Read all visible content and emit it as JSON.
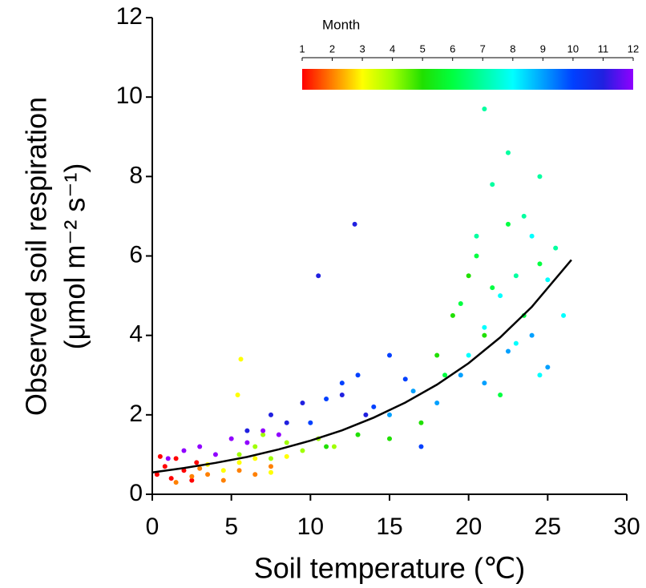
{
  "chart_data": {
    "type": "scatter",
    "xlabel": "Soil temperature (℃)",
    "ylabel": [
      "Observed soil respiration",
      "(μmol m⁻² s⁻¹)"
    ],
    "xlim": [
      0,
      30
    ],
    "xticks": [
      0,
      5,
      10,
      15,
      20,
      25,
      30
    ],
    "ylim": [
      0,
      12
    ],
    "yticks": [
      0,
      2,
      4,
      6,
      8,
      10,
      12
    ],
    "colorbar": {
      "title": "Month",
      "ticks": [
        1,
        2,
        3,
        4,
        5,
        6,
        7,
        8,
        9,
        10,
        11,
        12
      ],
      "colors": [
        "#ff0000",
        "#ff8000",
        "#ffff00",
        "#a0ff00",
        "#20e000",
        "#00ff40",
        "#00ffa0",
        "#00ffff",
        "#00a0ff",
        "#0040ff",
        "#2020e0",
        "#9000ff"
      ]
    },
    "points": {
      "x": [
        0.3,
        0.8,
        1.2,
        1.5,
        2.0,
        2.5,
        0.5,
        2.8,
        1.5,
        2.5,
        3.5,
        4.5,
        5.5,
        6.5,
        7.5,
        3.0,
        3.5,
        4.5,
        5.5,
        6.5,
        7.5,
        8.5,
        5.6,
        5.4,
        5.5,
        6.5,
        7.5,
        8.5,
        9.5,
        10.5,
        11.5,
        7.0,
        11,
        13,
        15,
        17,
        18,
        19,
        20,
        21,
        18.5,
        19.5,
        20.5,
        21.5,
        22.5,
        23.5,
        24.5,
        22,
        20.5,
        21.5,
        22.5,
        23.5,
        24.5,
        25.5,
        21,
        23,
        20,
        21,
        22,
        23,
        24,
        25,
        26,
        24.5,
        15,
        16.5,
        18,
        19.5,
        21,
        22.5,
        24,
        25,
        10,
        11,
        12,
        13,
        14,
        15,
        16,
        17,
        6,
        7.5,
        8.5,
        9.5,
        10.5,
        12,
        13.5,
        12.8,
        1,
        2,
        3,
        4,
        5,
        6,
        7,
        8
      ],
      "y": [
        0.5,
        0.7,
        0.4,
        0.9,
        0.6,
        0.35,
        0.95,
        0.8,
        0.3,
        0.45,
        0.5,
        0.35,
        0.6,
        0.5,
        0.7,
        0.65,
        0.75,
        0.6,
        0.8,
        0.9,
        0.55,
        0.95,
        3.4,
        2.5,
        1.0,
        1.2,
        0.9,
        1.3,
        1.1,
        1.4,
        1.2,
        1.5,
        1.2,
        1.5,
        1.4,
        1.8,
        3.5,
        4.5,
        5.5,
        4.0,
        3.0,
        4.8,
        6.0,
        5.2,
        6.8,
        4.5,
        5.8,
        2.5,
        6.5,
        7.8,
        8.6,
        7.0,
        8.0,
        6.2,
        9.7,
        5.5,
        3.5,
        4.2,
        5.0,
        3.8,
        6.5,
        5.4,
        4.5,
        3.0,
        2.0,
        2.6,
        2.3,
        3.0,
        2.8,
        3.6,
        4.0,
        3.2,
        1.8,
        2.4,
        2.8,
        3.0,
        2.2,
        3.5,
        2.9,
        1.2,
        1.6,
        2.0,
        1.8,
        2.3,
        5.5,
        2.5,
        2.0,
        6.8,
        0.9,
        1.1,
        1.2,
        1.0,
        1.4,
        1.3,
        1.6,
        1.5
      ],
      "month": [
        1,
        1,
        1,
        1,
        1,
        1,
        1,
        1,
        2,
        2,
        2,
        2,
        2,
        2,
        2,
        2,
        3,
        3,
        3,
        3,
        3,
        3,
        3,
        3,
        4,
        4,
        4,
        4,
        4,
        4,
        4,
        4,
        5,
        5,
        5,
        5,
        5,
        5,
        5,
        5,
        6,
        6,
        6,
        6,
        6,
        6,
        6,
        6,
        7,
        7,
        7,
        7,
        7,
        7,
        7,
        7,
        8,
        8,
        8,
        8,
        8,
        8,
        8,
        8,
        9,
        9,
        9,
        9,
        9,
        9,
        9,
        9,
        10,
        10,
        10,
        10,
        10,
        10,
        10,
        10,
        11,
        11,
        11,
        11,
        11,
        11,
        11,
        11,
        12,
        12,
        12,
        12,
        12,
        12,
        12,
        12
      ]
    },
    "fit": {
      "color": "#000000",
      "x": [
        0,
        2,
        4,
        6,
        8,
        10,
        12,
        14,
        16,
        18,
        20,
        22,
        24,
        26.5
      ],
      "values": [
        0.55,
        0.66,
        0.79,
        0.94,
        1.13,
        1.35,
        1.61,
        1.93,
        2.31,
        2.76,
        3.3,
        3.95,
        4.72,
        5.9
      ]
    }
  }
}
